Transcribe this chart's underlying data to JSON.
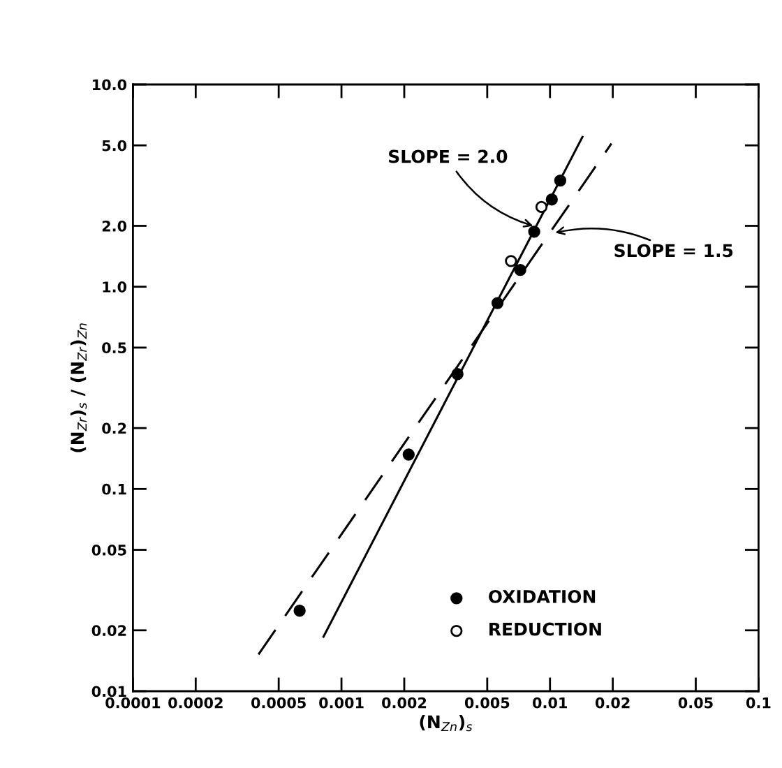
{
  "chart_data": {
    "type": "scatter",
    "xlabel": "(N$_{Zn}$)$_{s}$",
    "ylabel": "(N$_{Zr}$)$_{s}$ / (N$_{Zr}$)$_{Zn}$",
    "log": "xy",
    "grid": false,
    "legend": "bottom",
    "xlim": [
      0.0001,
      0.1
    ],
    "xticks": [
      {
        "value": 0.0001,
        "label": "0.0001"
      },
      {
        "value": 0.0002,
        "label": "0.0002"
      },
      {
        "value": 0.0005,
        "label": "0.0005"
      },
      {
        "value": 0.001,
        "label": "0.001"
      },
      {
        "value": 0.002,
        "label": "0.002"
      },
      {
        "value": 0.005,
        "label": "0.005"
      },
      {
        "value": 0.01,
        "label": "0.01"
      },
      {
        "value": 0.02,
        "label": "0.02"
      },
      {
        "value": 0.05,
        "label": "0.05"
      },
      {
        "value": 0.1,
        "label": "0.1"
      }
    ],
    "ylim": [
      0.01,
      10
    ],
    "yticks": [
      {
        "value": 0.01,
        "label": "0.01"
      },
      {
        "value": 0.02,
        "label": "0.02"
      },
      {
        "value": 0.05,
        "label": "0.05"
      },
      {
        "value": 0.1,
        "label": "0.1"
      },
      {
        "value": 0.2,
        "label": "0.2"
      },
      {
        "value": 0.5,
        "label": "0.5"
      },
      {
        "value": 1,
        "label": "1.0"
      },
      {
        "value": 2,
        "label": "2.0"
      },
      {
        "value": 5,
        "label": "5.0"
      },
      {
        "value": 10,
        "label": "10.0"
      }
    ],
    "series": [
      {
        "name": "OXIDATION",
        "marker": "circle",
        "color": "#000000",
        "x": [
          0.00063,
          0.0021,
          0.0036,
          0.0056,
          0.0072,
          0.0084,
          0.0102,
          0.0112
        ],
        "values": [
          0.025,
          0.148,
          0.37,
          0.83,
          1.21,
          1.87,
          2.7,
          3.35
        ]
      },
      {
        "name": "REDUCTION",
        "marker": "circle",
        "color": "#ffffff",
        "x": [
          0.0065,
          0.0091
        ],
        "values": [
          1.34,
          2.48
        ]
      },
      {
        "type": "line",
        "line_style": "solid",
        "marker": "none",
        "color": "#000000",
        "x": [
          0.00082,
          0.0143
        ],
        "values": [
          0.0186,
          5.5
        ]
      },
      {
        "type": "line",
        "line_style": "dashed",
        "marker": "none",
        "color": "#000000",
        "x": [
          0.0004,
          0.0197
        ],
        "values": [
          0.0152,
          5.1
        ]
      }
    ],
    "annotations": [
      {
        "text": "SLOPE = 2.0",
        "x": 0.0083,
        "y": 2.0
      },
      {
        "text": "SLOPE = 1.5",
        "x": 0.0106,
        "y": 1.85
      }
    ]
  }
}
